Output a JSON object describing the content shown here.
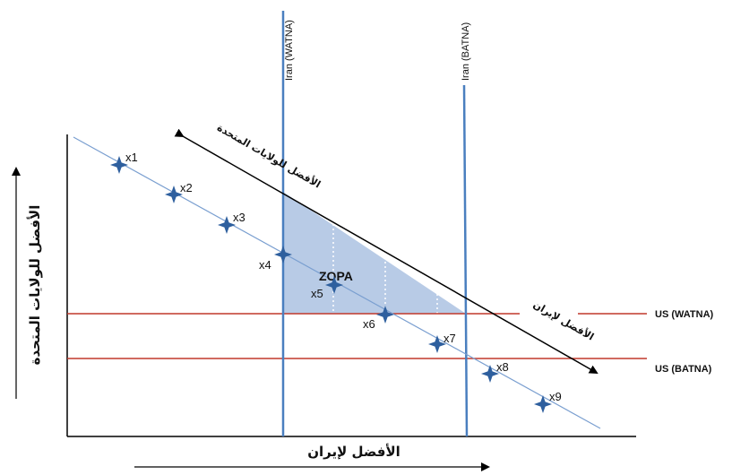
{
  "diagram": {
    "vertical_lines": [
      {
        "label": "Iran (WATNA)"
      },
      {
        "label": "Iran (BATNA)"
      }
    ],
    "horizontal_lines": [
      {
        "label": "US (WATNA)"
      },
      {
        "label": "US (BATNA)"
      }
    ],
    "zopa_label": "ZOPA",
    "points": [
      "x1",
      "x2",
      "x3",
      "x4",
      "x5",
      "x6",
      "x7",
      "x8",
      "x9"
    ],
    "x_axis_label": "الأفضل لإيران",
    "y_axis_label": "الأفضل للولايات المتحدة",
    "diagonal_label_us": "الأفضل للولايات المتحدة",
    "diagonal_label_iran": "الأفضل لإيران",
    "colors": {
      "vertical_line": "#4a7fbf",
      "horizontal_line": "#c0392b",
      "zopa_fill": "#b8cbe6",
      "point_marker": "#2e5f9e",
      "axis": "#000000"
    }
  }
}
